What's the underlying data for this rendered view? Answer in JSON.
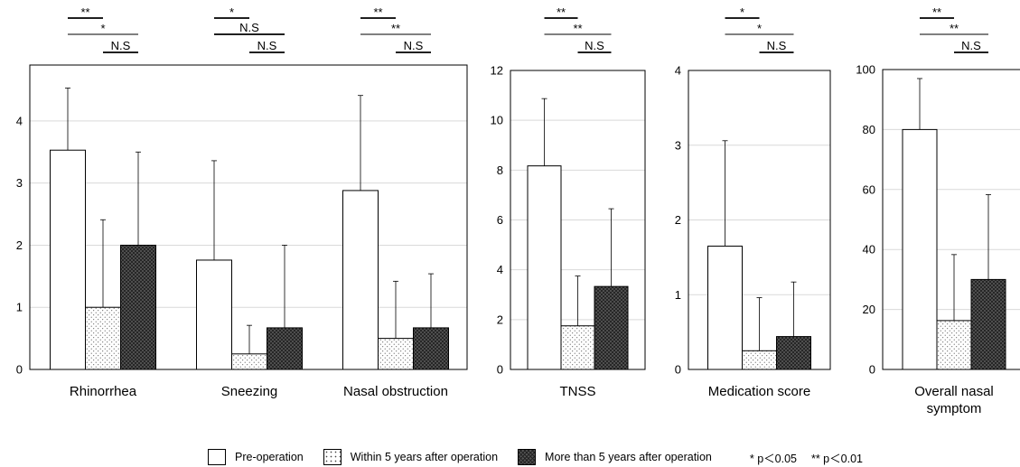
{
  "chart_data": [
    {
      "type": "bar",
      "categories": [
        "Rhinorrhea",
        "Sneezing",
        "Nasal obstruction"
      ],
      "series": [
        {
          "name": "Pre-operation",
          "values": [
            3.53,
            1.76,
            2.88
          ],
          "errors": [
            1.0,
            1.6,
            1.53
          ]
        },
        {
          "name": "Within 5 years after operation",
          "values": [
            1.0,
            0.25,
            0.5
          ],
          "errors": [
            1.41,
            0.46,
            0.92
          ]
        },
        {
          "name": "More than 5 years after operation",
          "values": [
            2.0,
            0.67,
            0.67
          ],
          "errors": [
            1.5,
            1.33,
            0.87
          ]
        }
      ],
      "ylim": [
        0,
        4.9
      ],
      "yticks": [
        "0",
        "1",
        "2",
        "3",
        "4"
      ],
      "significance": [
        [
          {
            "label": "**",
            "from": 0,
            "to": 1
          },
          {
            "label": "*",
            "from": 0,
            "to": 2
          },
          {
            "label": "N.S",
            "from": 1,
            "to": 2
          }
        ],
        [
          {
            "label": "*",
            "from": 0,
            "to": 1
          },
          {
            "label": "N.S",
            "from": 0,
            "to": 2
          },
          {
            "label": "N.S",
            "from": 1,
            "to": 2
          }
        ],
        [
          {
            "label": "**",
            "from": 0,
            "to": 1
          },
          {
            "label": "**",
            "from": 0,
            "to": 2
          },
          {
            "label": "N.S",
            "from": 1,
            "to": 2
          }
        ]
      ]
    },
    {
      "type": "bar",
      "categories": [
        "TNSS"
      ],
      "series": [
        {
          "name": "Pre-operation",
          "values": [
            8.17
          ],
          "errors": [
            2.7
          ]
        },
        {
          "name": "Within 5 years after operation",
          "values": [
            1.75
          ],
          "errors": [
            2.0
          ]
        },
        {
          "name": "More than 5 years after operation",
          "values": [
            3.33
          ],
          "errors": [
            3.12
          ]
        }
      ],
      "ylim": [
        0,
        12
      ],
      "yticks": [
        "0",
        "2",
        "4",
        "6",
        "8",
        "10",
        "12"
      ],
      "significance": [
        [
          {
            "label": "**",
            "from": 0,
            "to": 1
          },
          {
            "label": "**",
            "from": 0,
            "to": 2
          },
          {
            "label": "N.S",
            "from": 1,
            "to": 2
          }
        ]
      ]
    },
    {
      "type": "bar",
      "categories": [
        "Medication score"
      ],
      "series": [
        {
          "name": "Pre-operation",
          "values": [
            1.65
          ],
          "errors": [
            1.41
          ]
        },
        {
          "name": "Within 5 years after operation",
          "values": [
            0.25
          ],
          "errors": [
            0.71
          ]
        },
        {
          "name": "More than 5 years after operation",
          "values": [
            0.44
          ],
          "errors": [
            0.73
          ]
        }
      ],
      "ylim": [
        0,
        4
      ],
      "yticks": [
        "0",
        "1",
        "2",
        "3",
        "4"
      ],
      "significance": [
        [
          {
            "label": "*",
            "from": 0,
            "to": 1
          },
          {
            "label": "*",
            "from": 0,
            "to": 2
          },
          {
            "label": "N.S",
            "from": 1,
            "to": 2
          }
        ]
      ]
    },
    {
      "type": "bar",
      "categories": [
        "Overall nasal symptom"
      ],
      "series": [
        {
          "name": "Pre-operation",
          "values": [
            80
          ],
          "errors": [
            17
          ]
        },
        {
          "name": "Within 5 years after operation",
          "values": [
            16.3
          ],
          "errors": [
            22
          ]
        },
        {
          "name": "More than 5 years after operation",
          "values": [
            30
          ],
          "errors": [
            28.3
          ]
        }
      ],
      "ylim": [
        0,
        100
      ],
      "yticks": [
        "0",
        "20",
        "40",
        "60",
        "80",
        "100"
      ],
      "significance": [
        [
          {
            "label": "**",
            "from": 0,
            "to": 1
          },
          {
            "label": "**",
            "from": 0,
            "to": 2
          },
          {
            "label": "N.S",
            "from": 1,
            "to": 2
          }
        ]
      ]
    }
  ],
  "legend": {
    "items": [
      "Pre-operation",
      "Within 5 years after operation",
      "More than 5 years after operation"
    ],
    "notes": [
      "* p＜0.05",
      "** p＜0.01"
    ]
  },
  "colors": {
    "gridline": "#d9d9d9",
    "axis": "#000000",
    "bar_outline": "#000000"
  }
}
